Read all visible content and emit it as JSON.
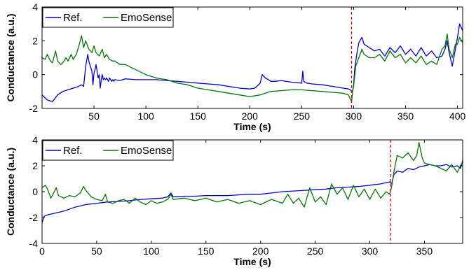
{
  "chart_data": [
    {
      "type": "line",
      "xlabel": "Time (s)",
      "ylabel": "Conductance (a.u.)",
      "xlim": [
        0,
        405
      ],
      "ylim": [
        -2,
        4
      ],
      "xticks": [
        50,
        100,
        150,
        200,
        250,
        300,
        350,
        400
      ],
      "yticks": [
        -2,
        0,
        2,
        4
      ],
      "legend_position": "top-left",
      "event_marker_x": 298,
      "series": [
        {
          "name": "Ref.",
          "color": "#0000cc",
          "x": [
            0,
            5,
            10,
            15,
            20,
            25,
            30,
            35,
            38,
            40,
            42,
            44,
            45,
            46,
            47,
            48,
            49,
            50,
            51,
            52,
            53,
            54,
            55,
            56,
            57,
            58,
            59,
            60,
            61,
            62,
            63,
            64,
            65,
            66,
            67,
            68,
            69,
            70,
            75,
            80,
            90,
            100,
            110,
            120,
            130,
            140,
            150,
            160,
            170,
            180,
            190,
            200,
            205,
            210,
            212,
            215,
            218,
            220,
            225,
            230,
            240,
            250,
            251,
            252,
            253,
            255,
            260,
            270,
            280,
            290,
            295,
            297,
            298,
            299,
            300,
            301,
            303,
            305,
            308,
            310,
            315,
            320,
            325,
            330,
            335,
            340,
            345,
            350,
            355,
            360,
            365,
            370,
            375,
            380,
            385,
            388,
            390,
            392,
            395,
            398,
            400,
            402,
            405
          ],
          "y": [
            -1.2,
            -1.5,
            -1.6,
            -1.2,
            -1.0,
            -0.9,
            -0.8,
            -0.7,
            -0.6,
            -0.7,
            0.5,
            1.2,
            0.8,
            0.6,
            0.4,
            0.2,
            -0.6,
            0.1,
            0.3,
            0.6,
            0.2,
            -0.2,
            0.0,
            -0.8,
            -0.3,
            0.0,
            -0.3,
            -0.2,
            -0.3,
            -0.2,
            -0.3,
            -0.4,
            -0.2,
            -0.3,
            -0.4,
            -0.3,
            -0.4,
            -0.3,
            -0.35,
            -0.25,
            -0.3,
            -0.3,
            -0.3,
            -0.35,
            -0.4,
            -0.45,
            -0.5,
            -0.55,
            -0.6,
            -0.7,
            -0.8,
            -0.85,
            -0.8,
            -0.5,
            0.0,
            -0.2,
            -0.3,
            -0.4,
            -0.4,
            -0.35,
            -0.45,
            -0.5,
            0.2,
            -0.4,
            -0.45,
            -0.5,
            -0.55,
            -0.6,
            -0.7,
            -0.8,
            -0.85,
            -0.9,
            -1.0,
            -0.95,
            -0.6,
            0.3,
            1.2,
            1.9,
            2.2,
            1.8,
            1.6,
            1.4,
            1.5,
            1.1,
            1.6,
            1.3,
            1.7,
            1.2,
            1.5,
            1.1,
            1.6,
            1.1,
            1.4,
            1.0,
            1.1,
            1.5,
            2.0,
            1.3,
            0.5,
            1.5,
            2.2,
            3.0,
            2.6
          ]
        },
        {
          "name": "EmoSense",
          "color": "#007700",
          "x": [
            0,
            3,
            5,
            8,
            10,
            13,
            15,
            18,
            20,
            23,
            25,
            28,
            30,
            33,
            35,
            38,
            40,
            42,
            45,
            48,
            50,
            52,
            55,
            58,
            60,
            62,
            65,
            68,
            70,
            75,
            80,
            90,
            100,
            110,
            120,
            130,
            140,
            150,
            160,
            170,
            180,
            190,
            200,
            210,
            220,
            230,
            240,
            250,
            260,
            270,
            280,
            290,
            295,
            298,
            299,
            300,
            302,
            305,
            308,
            310,
            315,
            320,
            325,
            330,
            335,
            340,
            345,
            350,
            355,
            360,
            365,
            370,
            375,
            380,
            385,
            388,
            390,
            392,
            395,
            398,
            400,
            402,
            405
          ],
          "y": [
            1.0,
            0.9,
            1.2,
            0.8,
            0.7,
            1.4,
            0.8,
            0.6,
            0.7,
            1.0,
            0.8,
            1.2,
            0.9,
            1.2,
            1.6,
            2.3,
            1.6,
            2.0,
            1.5,
            1.3,
            1.7,
            1.3,
            1.1,
            1.5,
            1.0,
            1.2,
            0.9,
            0.8,
            0.8,
            0.6,
            0.6,
            0.3,
            0.0,
            -0.2,
            -0.3,
            -0.5,
            -0.6,
            -0.8,
            -0.9,
            -1.0,
            -1.1,
            -1.2,
            -1.3,
            -1.2,
            -1.0,
            -0.95,
            -0.9,
            -0.9,
            -0.95,
            -1.0,
            -1.05,
            -1.1,
            -1.2,
            -1.6,
            -1.0,
            -0.7,
            0.5,
            1.0,
            1.5,
            1.2,
            1.0,
            1.0,
            1.2,
            0.8,
            1.4,
            1.0,
            1.2,
            0.7,
            1.0,
            0.7,
            1.1,
            0.6,
            0.8,
            0.6,
            1.5,
            1.7,
            2.4,
            1.5,
            1.0,
            1.8,
            1.8,
            2.2,
            1.9
          ]
        }
      ]
    },
    {
      "type": "line",
      "xlabel": "Time (s)",
      "ylabel": "Conductance (a.u.)",
      "xlim": [
        0,
        385
      ],
      "ylim": [
        -4,
        4
      ],
      "xticks": [
        0,
        50,
        100,
        150,
        200,
        250,
        300,
        350
      ],
      "yticks": [
        -4,
        -2,
        0,
        2,
        4
      ],
      "legend_position": "top-left",
      "event_marker_x": 319,
      "series": [
        {
          "name": "Ref.",
          "color": "#0000cc",
          "x": [
            0,
            2,
            5,
            10,
            15,
            20,
            30,
            40,
            50,
            60,
            70,
            80,
            90,
            100,
            110,
            115,
            118,
            120,
            130,
            140,
            150,
            160,
            170,
            180,
            190,
            200,
            210,
            220,
            230,
            240,
            250,
            260,
            270,
            280,
            290,
            300,
            310,
            315,
            318,
            319,
            320,
            322,
            325,
            330,
            335,
            340,
            345,
            350,
            355,
            360,
            365,
            370,
            375,
            380,
            383,
            385
          ],
          "y": [
            -2.4,
            -1.9,
            -1.8,
            -1.7,
            -1.6,
            -1.5,
            -1.2,
            -1.0,
            -0.9,
            -0.8,
            -0.75,
            -0.7,
            -0.6,
            -0.55,
            -0.5,
            -0.4,
            -0.1,
            -0.4,
            -0.35,
            -0.35,
            -0.3,
            -0.3,
            -0.3,
            -0.25,
            -0.2,
            -0.2,
            -0.1,
            0.0,
            0.05,
            0.1,
            0.15,
            0.2,
            0.3,
            0.35,
            0.4,
            0.5,
            0.6,
            0.7,
            0.75,
            0.7,
            0.6,
            1.3,
            1.6,
            1.5,
            1.8,
            1.7,
            1.9,
            2.0,
            2.1,
            2.0,
            2.0,
            2.1,
            1.9,
            2.0,
            1.8,
            2.4
          ]
        },
        {
          "name": "EmoSense",
          "color": "#007700",
          "x": [
            0,
            3,
            5,
            8,
            10,
            13,
            15,
            20,
            25,
            30,
            35,
            38,
            40,
            45,
            50,
            55,
            58,
            60,
            65,
            70,
            75,
            80,
            85,
            90,
            95,
            100,
            105,
            110,
            115,
            118,
            120,
            130,
            140,
            150,
            160,
            170,
            180,
            190,
            200,
            210,
            220,
            225,
            230,
            235,
            240,
            245,
            250,
            255,
            260,
            265,
            270,
            275,
            280,
            285,
            290,
            295,
            300,
            305,
            310,
            315,
            318,
            319,
            320,
            322,
            325,
            330,
            335,
            340,
            343,
            345,
            348,
            350,
            355,
            360,
            365,
            370,
            375,
            380,
            385
          ],
          "y": [
            0.3,
            0.5,
            0.2,
            -0.5,
            -0.2,
            0.3,
            -0.3,
            -0.5,
            -0.3,
            -0.4,
            -0.1,
            0.4,
            0.1,
            -0.4,
            -0.6,
            -0.7,
            -0.2,
            -0.8,
            -0.9,
            -0.7,
            -0.6,
            -0.9,
            -0.5,
            -0.8,
            -1.0,
            -0.7,
            -0.9,
            -0.8,
            -0.6,
            -0.2,
            -0.6,
            -0.5,
            -0.7,
            -0.5,
            -0.8,
            -0.6,
            -0.9,
            -0.7,
            -1.0,
            -0.6,
            -0.9,
            -0.2,
            -0.9,
            -0.5,
            -1.2,
            0.3,
            -0.8,
            -0.4,
            -1.0,
            0.6,
            -0.2,
            0.3,
            -0.6,
            0.5,
            -0.4,
            0.2,
            -0.6,
            0.2,
            -0.5,
            0.0,
            -0.2,
            0.0,
            0.4,
            1.5,
            2.8,
            2.6,
            3.0,
            2.4,
            2.8,
            3.8,
            2.6,
            2.2,
            2.1,
            2.0,
            1.8,
            1.6,
            2.1,
            1.5,
            2.3
          ]
        }
      ]
    }
  ]
}
